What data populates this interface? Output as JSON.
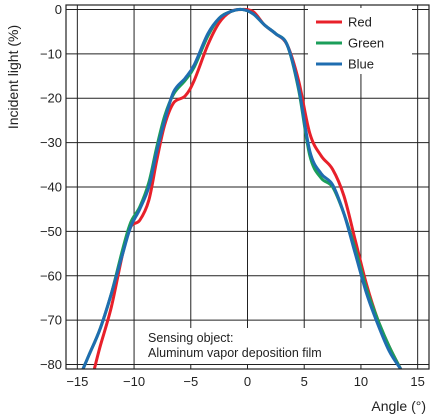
{
  "chart_data": {
    "type": "line",
    "title": "",
    "xlabel": "Angle (°)",
    "ylabel": "Incident light (%)",
    "xlim": [
      -16,
      16
    ],
    "ylim": [
      -81,
      1
    ],
    "xticks": [
      -15,
      -10,
      -5,
      0,
      5,
      10,
      15
    ],
    "xtick_labels": [
      "−15",
      "−10",
      "−5",
      "0",
      "5",
      "10",
      "15"
    ],
    "yticks": [
      0,
      -10,
      -20,
      -30,
      -40,
      -50,
      -60,
      -70,
      -80
    ],
    "ytick_labels": [
      "0",
      "−10",
      "−20",
      "−30",
      "−40",
      "−50",
      "−60",
      "−70",
      "−80"
    ],
    "grid": true,
    "legend": "top-right",
    "annotation": [
      "Sensing object:",
      "Aluminum vapor deposition film"
    ],
    "series": [
      {
        "name": "Red",
        "color": "#e8202a",
        "points": [
          [
            -13.5,
            -81
          ],
          [
            -13,
            -76
          ],
          [
            -12,
            -67
          ],
          [
            -11,
            -55
          ],
          [
            -10.3,
            -49
          ],
          [
            -9.5,
            -47.5
          ],
          [
            -8.7,
            -43
          ],
          [
            -8,
            -34
          ],
          [
            -7.3,
            -26
          ],
          [
            -6.5,
            -21
          ],
          [
            -5.5,
            -19.5
          ],
          [
            -4.7,
            -16
          ],
          [
            -3.5,
            -8
          ],
          [
            -2.5,
            -3
          ],
          [
            -1.5,
            -0.5
          ],
          [
            -0.5,
            0
          ],
          [
            0.5,
            -0.5
          ],
          [
            1.5,
            -3.5
          ],
          [
            2.5,
            -5.5
          ],
          [
            3.5,
            -8
          ],
          [
            4.5,
            -16
          ],
          [
            5.5,
            -28
          ],
          [
            6.5,
            -33
          ],
          [
            7.5,
            -36
          ],
          [
            8.5,
            -42
          ],
          [
            9.5,
            -52
          ],
          [
            10.5,
            -62
          ],
          [
            11.5,
            -70
          ],
          [
            12.5,
            -76
          ],
          [
            13.5,
            -81
          ]
        ]
      },
      {
        "name": "Green",
        "color": "#1b9e5a",
        "points": [
          [
            -14.5,
            -81
          ],
          [
            -14,
            -78
          ],
          [
            -13,
            -72
          ],
          [
            -12,
            -64
          ],
          [
            -11,
            -54
          ],
          [
            -10.3,
            -48
          ],
          [
            -9.5,
            -44.5
          ],
          [
            -8.7,
            -39
          ],
          [
            -8,
            -31
          ],
          [
            -7.3,
            -24
          ],
          [
            -6.5,
            -19
          ],
          [
            -5.5,
            -16
          ],
          [
            -4.7,
            -13
          ],
          [
            -3.5,
            -6
          ],
          [
            -2.5,
            -2
          ],
          [
            -1.5,
            -0.5
          ],
          [
            -0.5,
            0
          ],
          [
            0.5,
            -1
          ],
          [
            1.5,
            -3.5
          ],
          [
            2.5,
            -5.5
          ],
          [
            3.5,
            -8
          ],
          [
            4.5,
            -18
          ],
          [
            5.5,
            -33
          ],
          [
            6.5,
            -38
          ],
          [
            7.5,
            -40
          ],
          [
            8.5,
            -46
          ],
          [
            9.5,
            -54
          ],
          [
            10.5,
            -63
          ],
          [
            11.5,
            -70
          ],
          [
            12.5,
            -76
          ],
          [
            13.5,
            -81
          ]
        ]
      },
      {
        "name": "Blue",
        "color": "#1f6db0",
        "points": [
          [
            -14.5,
            -81
          ],
          [
            -14,
            -78
          ],
          [
            -13,
            -72
          ],
          [
            -12,
            -64
          ],
          [
            -11,
            -55
          ],
          [
            -10.3,
            -49
          ],
          [
            -9.5,
            -45
          ],
          [
            -8.7,
            -40
          ],
          [
            -8,
            -32
          ],
          [
            -7.3,
            -25
          ],
          [
            -6.5,
            -18.5
          ],
          [
            -5.5,
            -15.5
          ],
          [
            -4.7,
            -12.5
          ],
          [
            -3.5,
            -5.5
          ],
          [
            -2.5,
            -2
          ],
          [
            -1.5,
            -0.5
          ],
          [
            -0.5,
            0
          ],
          [
            0.5,
            -1
          ],
          [
            1.5,
            -3.5
          ],
          [
            2.5,
            -5.5
          ],
          [
            3.5,
            -8
          ],
          [
            4.5,
            -17.5
          ],
          [
            5.5,
            -32
          ],
          [
            6.5,
            -37
          ],
          [
            7.5,
            -39.5
          ],
          [
            8.5,
            -46
          ],
          [
            9.5,
            -55
          ],
          [
            10.5,
            -64
          ],
          [
            11.5,
            -71
          ],
          [
            12.5,
            -77
          ],
          [
            13.5,
            -81
          ]
        ]
      }
    ]
  }
}
